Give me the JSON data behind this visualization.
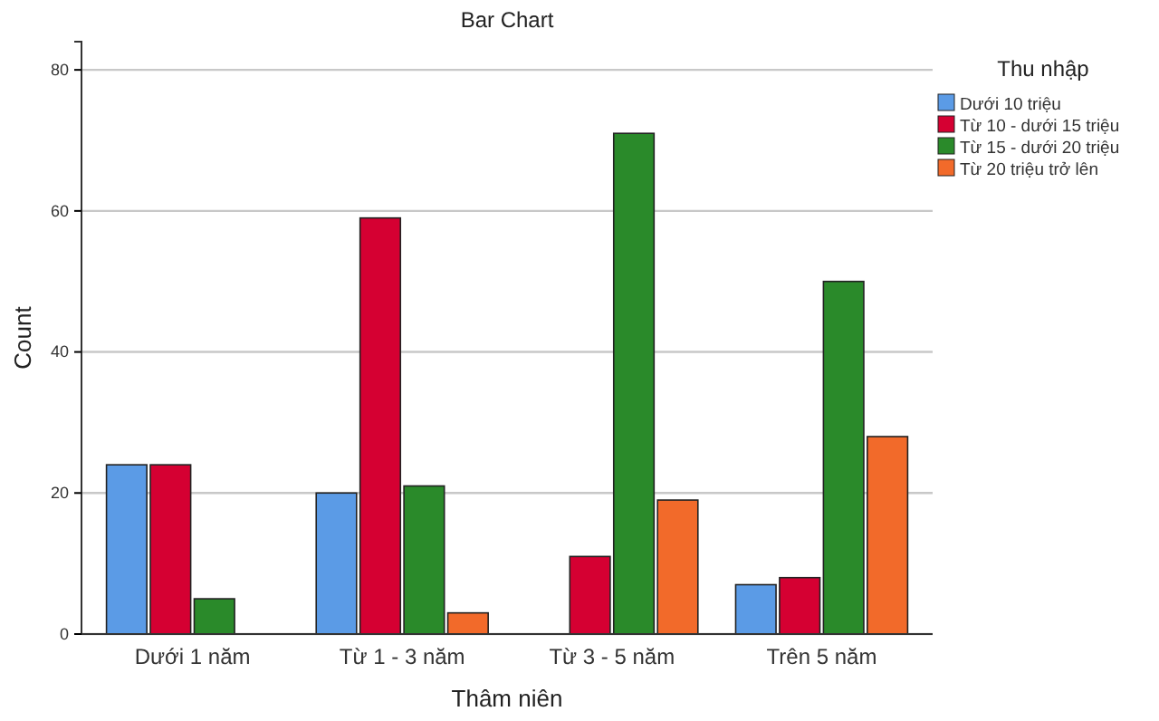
{
  "chart_data": {
    "type": "bar",
    "title": "Bar Chart",
    "xlabel": "Thâm niên",
    "ylabel": "Count",
    "legend_title": "Thu nhập",
    "categories": [
      "Dưới 1 năm",
      "Từ 1 - 3 năm",
      "Từ 3 - 5 năm",
      "Trên 5 năm"
    ],
    "series": [
      {
        "name": "Dưới 10 triệu",
        "color": "#5b9be6",
        "values": [
          24,
          20,
          null,
          7
        ]
      },
      {
        "name": "Từ 10 - dưới 15 triệu",
        "color": "#d50032",
        "values": [
          24,
          59,
          11,
          8
        ]
      },
      {
        "name": "Từ 15 - dưới 20 triệu",
        "color": "#2a8a2a",
        "values": [
          5,
          21,
          71,
          50
        ]
      },
      {
        "name": "Từ 20 triệu trở lên",
        "color": "#f26a2a",
        "values": [
          null,
          3,
          19,
          28
        ]
      }
    ],
    "ylim": [
      0,
      84
    ],
    "yticks": [
      0,
      20,
      40,
      60,
      80
    ],
    "grid": "y",
    "legend": "top right"
  }
}
